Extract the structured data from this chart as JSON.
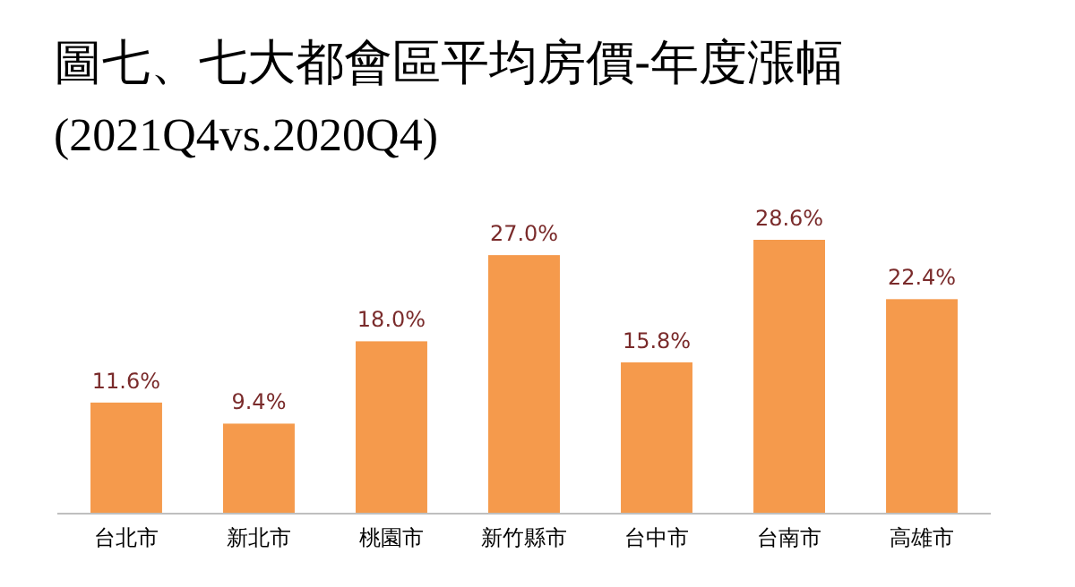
{
  "chart_data": {
    "type": "bar",
    "title": "圖七、七大都會區平均房價-年度漲幅",
    "subtitle": "(2021Q4vs.2020Q4)",
    "categories": [
      "台北市",
      "新北市",
      "桃園市",
      "新竹縣市",
      "台中市",
      "台南市",
      "高雄市"
    ],
    "values": [
      11.6,
      9.4,
      18.0,
      27.0,
      15.8,
      28.6,
      22.4
    ],
    "value_labels": [
      "11.6%",
      "9.4%",
      "18.0%",
      "27.0%",
      "15.8%",
      "28.6%",
      "22.4%"
    ],
    "color": "#f59a4c"
  }
}
